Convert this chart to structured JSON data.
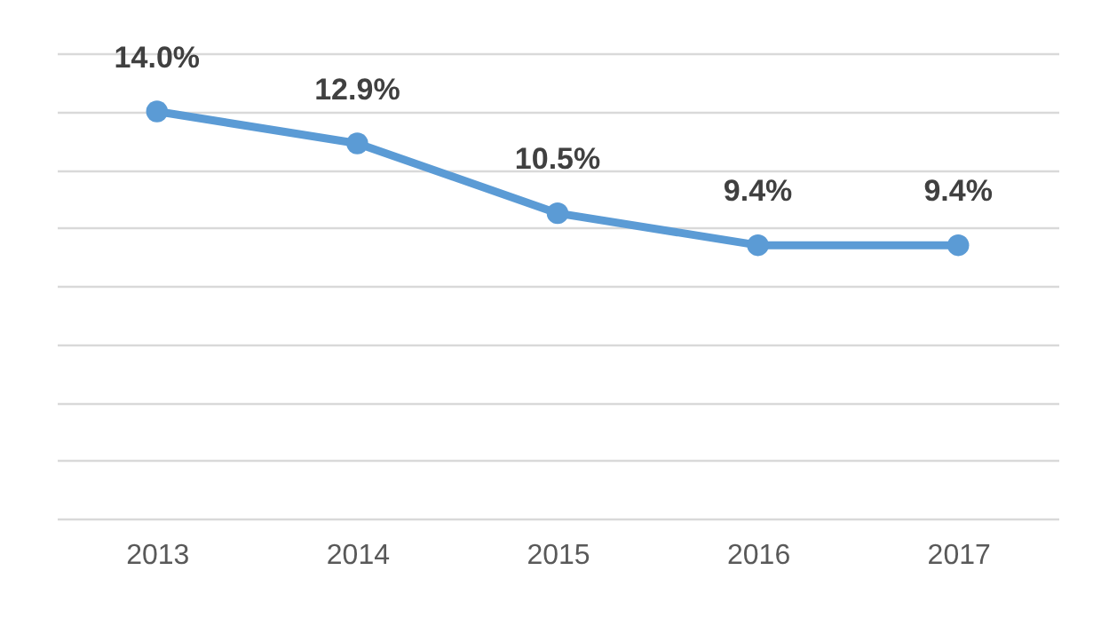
{
  "chart_data": {
    "type": "line",
    "categories": [
      "2013",
      "2014",
      "2015",
      "2016",
      "2017"
    ],
    "series": [
      {
        "color": "#5b9bd5",
        "values": [
          14.0,
          12.9,
          10.5,
          9.4,
          9.4
        ],
        "value_labels": [
          "14.0%",
          "12.9%",
          "10.5%",
          "9.4%",
          "9.4%"
        ]
      }
    ],
    "ylim": [
      0,
      16
    ],
    "yticks": [
      {
        "value": 0,
        "label": null
      },
      {
        "value": 2,
        "label": null
      },
      {
        "value": 4,
        "label": null
      },
      {
        "value": 6,
        "label": null
      },
      {
        "value": 8,
        "label": null
      },
      {
        "value": 10,
        "label": null
      },
      {
        "value": 12,
        "label": null
      },
      {
        "value": 14,
        "label": null
      },
      {
        "value": 16,
        "label": null
      }
    ],
    "grid": "y",
    "tick_labels": "x",
    "marker": "circle",
    "line_style": "solid"
  }
}
